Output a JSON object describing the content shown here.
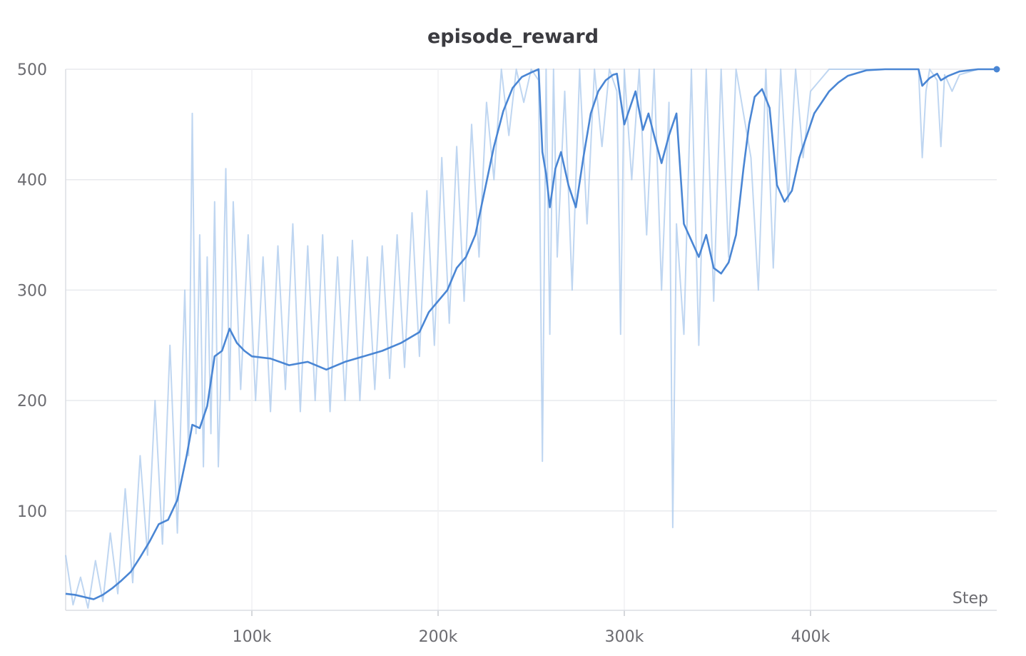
{
  "chart_data": {
    "type": "line",
    "title": "episode_reward",
    "xlabel": "Step",
    "ylabel": "",
    "xlim": [
      0,
      500000
    ],
    "ylim": [
      10,
      500
    ],
    "xticks": [
      100000,
      200000,
      300000,
      400000
    ],
    "xtick_labels": [
      "100k",
      "200k",
      "300k",
      "400k"
    ],
    "yticks": [
      100,
      200,
      300,
      400,
      500
    ],
    "ytick_labels": [
      "100",
      "200",
      "300",
      "400",
      "500"
    ],
    "grid": true,
    "legend": "none",
    "colors": {
      "smoothed": "#4a86d4",
      "raw": "#a9c8ec"
    },
    "series": [
      {
        "role": "smoothed",
        "x": [
          0,
          5000,
          10000,
          15000,
          20000,
          25000,
          30000,
          35000,
          40000,
          45000,
          50000,
          55000,
          60000,
          65000,
          68000,
          72000,
          76000,
          80000,
          84000,
          88000,
          92000,
          96000,
          100000,
          110000,
          120000,
          130000,
          140000,
          150000,
          160000,
          170000,
          180000,
          190000,
          195000,
          200000,
          205000,
          210000,
          215000,
          220000,
          225000,
          230000,
          235000,
          240000,
          245000,
          250000,
          254000,
          256000,
          258000,
          260000,
          263000,
          266000,
          270000,
          274000,
          278000,
          282000,
          286000,
          290000,
          294000,
          296000,
          300000,
          304000,
          306000,
          310000,
          313000,
          316000,
          320000,
          324000,
          328000,
          332000,
          336000,
          340000,
          344000,
          348000,
          352000,
          356000,
          360000,
          364000,
          367000,
          370000,
          374000,
          378000,
          382000,
          386000,
          390000,
          394000,
          398000,
          402000,
          406000,
          410000,
          415000,
          420000,
          430000,
          440000,
          450000,
          458000,
          460000,
          464000,
          468000,
          470000,
          474000,
          480000,
          490000,
          500000
        ],
        "y": [
          25,
          24,
          22,
          20,
          24,
          30,
          37,
          45,
          58,
          72,
          88,
          92,
          110,
          150,
          178,
          175,
          195,
          240,
          245,
          265,
          252,
          245,
          240,
          238,
          232,
          235,
          228,
          235,
          240,
          245,
          252,
          262,
          280,
          290,
          300,
          320,
          330,
          350,
          390,
          430,
          462,
          483,
          493,
          497,
          500,
          425,
          405,
          375,
          410,
          425,
          395,
          375,
          420,
          460,
          480,
          490,
          495,
          496,
          450,
          470,
          480,
          445,
          460,
          440,
          415,
          440,
          460,
          360,
          345,
          330,
          350,
          320,
          315,
          325,
          350,
          410,
          450,
          475,
          482,
          465,
          395,
          380,
          390,
          420,
          440,
          460,
          470,
          480,
          488,
          494,
          499,
          500,
          500,
          500,
          485,
          492,
          496,
          490,
          494,
          498,
          500,
          500
        ]
      },
      {
        "role": "raw",
        "x": [
          0,
          4000,
          8000,
          12000,
          16000,
          20000,
          24000,
          28000,
          32000,
          36000,
          40000,
          44000,
          48000,
          52000,
          56000,
          60000,
          64000,
          66000,
          68000,
          70000,
          72000,
          74000,
          76000,
          78000,
          80000,
          82000,
          84000,
          86000,
          88000,
          90000,
          94000,
          98000,
          102000,
          106000,
          110000,
          114000,
          118000,
          122000,
          126000,
          130000,
          134000,
          138000,
          142000,
          146000,
          150000,
          154000,
          158000,
          162000,
          166000,
          170000,
          174000,
          178000,
          182000,
          186000,
          190000,
          194000,
          198000,
          202000,
          206000,
          210000,
          214000,
          218000,
          222000,
          226000,
          230000,
          234000,
          238000,
          242000,
          246000,
          250000,
          254000,
          256000,
          258000,
          260000,
          262000,
          264000,
          268000,
          272000,
          276000,
          280000,
          284000,
          288000,
          292000,
          296000,
          298000,
          300000,
          304000,
          308000,
          312000,
          316000,
          320000,
          324000,
          326000,
          328000,
          332000,
          336000,
          340000,
          344000,
          348000,
          352000,
          356000,
          360000,
          364000,
          368000,
          372000,
          376000,
          380000,
          384000,
          388000,
          392000,
          396000,
          400000,
          410000,
          420000,
          430000,
          440000,
          450000,
          458000,
          460000,
          462000,
          464000,
          468000,
          470000,
          472000,
          476000,
          480000,
          490000,
          500000
        ],
        "y": [
          60,
          15,
          40,
          12,
          55,
          18,
          80,
          25,
          120,
          35,
          150,
          60,
          200,
          70,
          250,
          80,
          300,
          150,
          460,
          170,
          350,
          140,
          330,
          170,
          380,
          140,
          260,
          410,
          200,
          380,
          210,
          350,
          200,
          330,
          190,
          340,
          210,
          360,
          190,
          340,
          200,
          350,
          190,
          330,
          200,
          345,
          200,
          330,
          210,
          340,
          220,
          350,
          230,
          370,
          240,
          390,
          250,
          420,
          270,
          430,
          290,
          450,
          330,
          470,
          400,
          500,
          440,
          500,
          470,
          500,
          490,
          145,
          500,
          260,
          500,
          330,
          480,
          300,
          500,
          360,
          500,
          430,
          500,
          480,
          260,
          500,
          400,
          500,
          350,
          500,
          300,
          470,
          85,
          360,
          260,
          500,
          250,
          500,
          290,
          500,
          330,
          500,
          460,
          420,
          300,
          500,
          320,
          500,
          380,
          500,
          420,
          480,
          500,
          500,
          500,
          500,
          500,
          500,
          420,
          480,
          500,
          490,
          430,
          495,
          480,
          495,
          500,
          500
        ]
      }
    ]
  }
}
